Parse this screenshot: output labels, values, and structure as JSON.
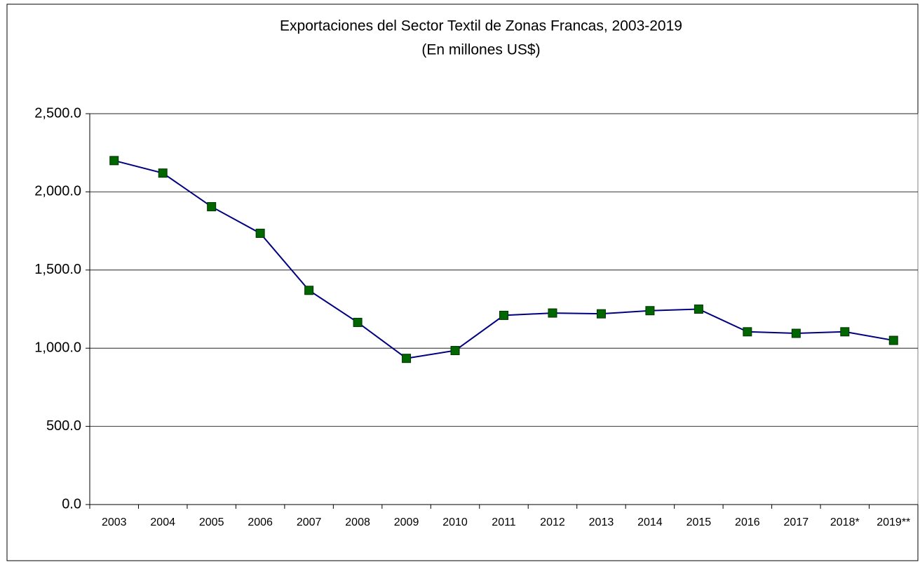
{
  "chart_data": {
    "type": "line",
    "title": "Exportaciones  del Sector Textil de Zonas Francas, 2003-2019",
    "subtitle": "(En millones US$)",
    "categories": [
      "2003",
      "2004",
      "2005",
      "2006",
      "2007",
      "2008",
      "2009",
      "2010",
      "2011",
      "2012",
      "2013",
      "2014",
      "2015",
      "2016",
      "2017",
      "2018*",
      "2019**"
    ],
    "series": [
      {
        "name": "Exportaciones",
        "color": "#000080",
        "marker_color": "#006600",
        "values": [
          2200,
          2120,
          1905,
          1735,
          1370,
          1165,
          935,
          985,
          1210,
          1225,
          1220,
          1240,
          1250,
          1105,
          1095,
          1105,
          1050
        ]
      }
    ],
    "ylim": [
      0,
      2500
    ],
    "yticks": [
      {
        "value": 0,
        "label": "0.0"
      },
      {
        "value": 500,
        "label": "500.0"
      },
      {
        "value": 1000,
        "label": "1,000.0"
      },
      {
        "value": 1500,
        "label": "1,500.0"
      },
      {
        "value": 2000,
        "label": "2,000.0"
      },
      {
        "value": 2500,
        "label": "2,500.0"
      }
    ],
    "grid": true
  }
}
